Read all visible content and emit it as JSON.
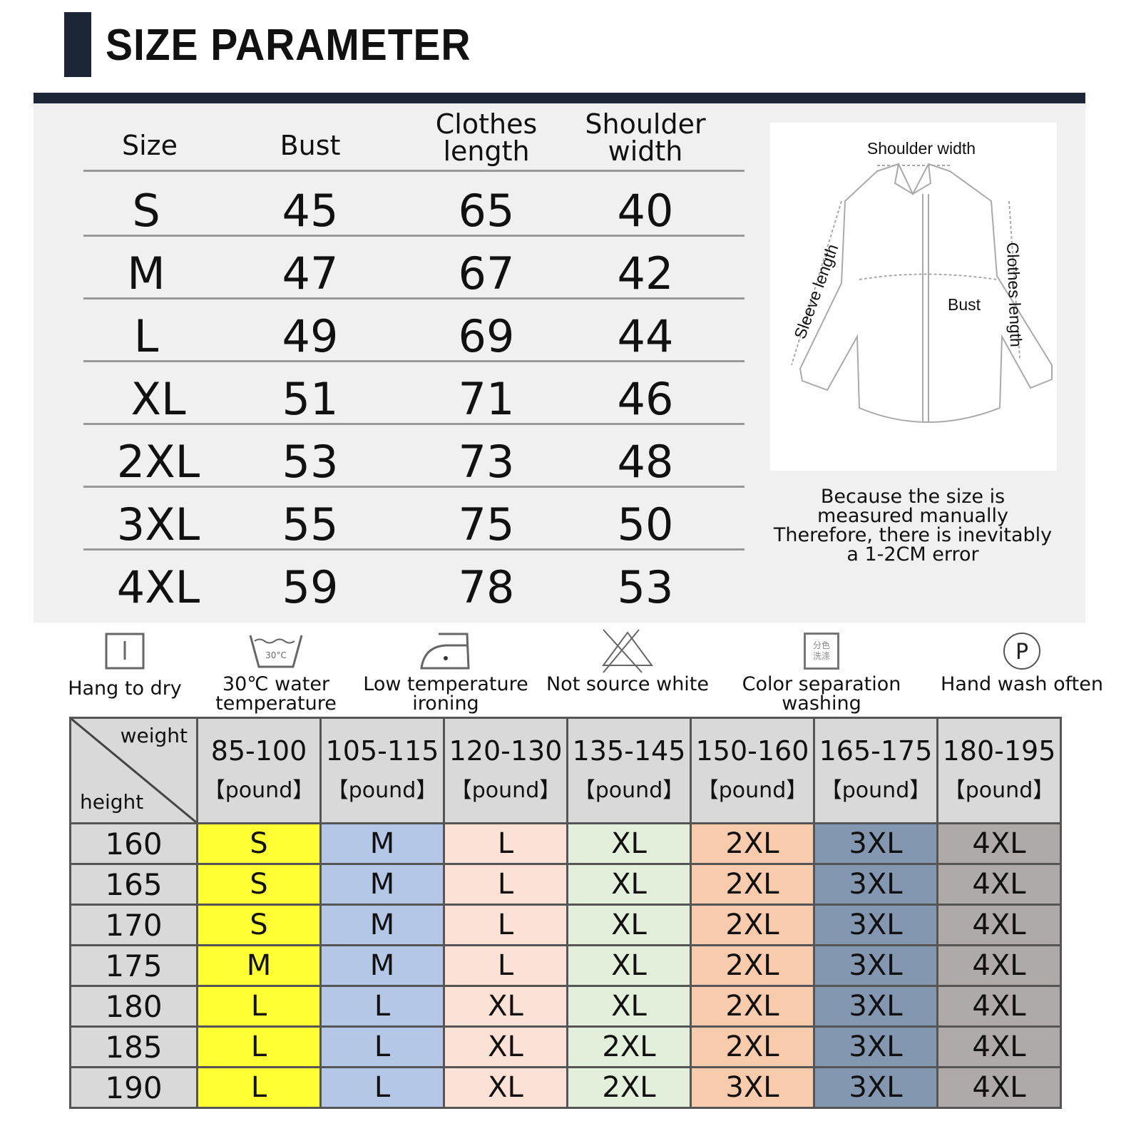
{
  "title": "SIZE PARAMETER",
  "size_table": {
    "headers": [
      "Size",
      "Bust",
      "Clothes length",
      "Shoulder width"
    ],
    "rows": [
      [
        "S",
        "45",
        "65",
        "40"
      ],
      [
        "M",
        "47",
        "67",
        "42"
      ],
      [
        "L",
        "49",
        "69",
        "44"
      ],
      [
        "XL",
        "51",
        "71",
        "46"
      ],
      [
        "2XL",
        "53",
        "73",
        "48"
      ],
      [
        "3XL",
        "55",
        "75",
        "50"
      ],
      [
        "4XL",
        "59",
        "78",
        "53"
      ]
    ]
  },
  "diagram": {
    "labels": {
      "shoulder": "Shoulder width",
      "sleeve": "Sleeve length",
      "bust": "Bust",
      "length": "Clothes length"
    }
  },
  "note": [
    "Because the size is",
    "measured manually",
    "Therefore, there is inevitably",
    "a 1-2CM error"
  ],
  "care": [
    {
      "icon": "hang-dry-icon",
      "label": "Hang to dry"
    },
    {
      "icon": "wash-30-icon",
      "icon_text": "30°C",
      "label": "30℃ water temperature"
    },
    {
      "icon": "low-iron-icon",
      "label": "Low temperature ironing"
    },
    {
      "icon": "no-bleach-icon",
      "label": "Not source white"
    },
    {
      "icon": "separate-wash-icon",
      "icon_text": "分色洗涤",
      "label": "Color separation washing"
    },
    {
      "icon": "professional-clean-icon",
      "icon_text": "P",
      "label": "Hand wash often"
    }
  ],
  "weight_table": {
    "corner": {
      "weight": "weight",
      "height": "height"
    },
    "unit": "【pound】",
    "weights": [
      "85-100",
      "105-115",
      "120-130",
      "135-145",
      "150-160",
      "165-175",
      "180-195"
    ],
    "colors": [
      "#ffff33",
      "#b4c7e7",
      "#fbe1d6",
      "#e2efda",
      "#f8cbad",
      "#8497b0",
      "#aeaaaa"
    ],
    "rows": [
      {
        "height": "160",
        "sizes": [
          "S",
          "M",
          "L",
          "XL",
          "2XL",
          "3XL",
          "4XL"
        ]
      },
      {
        "height": "165",
        "sizes": [
          "S",
          "M",
          "L",
          "XL",
          "2XL",
          "3XL",
          "4XL"
        ]
      },
      {
        "height": "170",
        "sizes": [
          "S",
          "M",
          "L",
          "XL",
          "2XL",
          "3XL",
          "4XL"
        ]
      },
      {
        "height": "175",
        "sizes": [
          "M",
          "M",
          "L",
          "XL",
          "2XL",
          "3XL",
          "4XL"
        ]
      },
      {
        "height": "180",
        "sizes": [
          "L",
          "L",
          "XL",
          "XL",
          "2XL",
          "3XL",
          "4XL"
        ]
      },
      {
        "height": "185",
        "sizes": [
          "L",
          "L",
          "XL",
          "2XL",
          "2XL",
          "3XL",
          "4XL"
        ]
      },
      {
        "height": "190",
        "sizes": [
          "L",
          "L",
          "XL",
          "2XL",
          "3XL",
          "3XL",
          "4XL"
        ]
      }
    ]
  }
}
